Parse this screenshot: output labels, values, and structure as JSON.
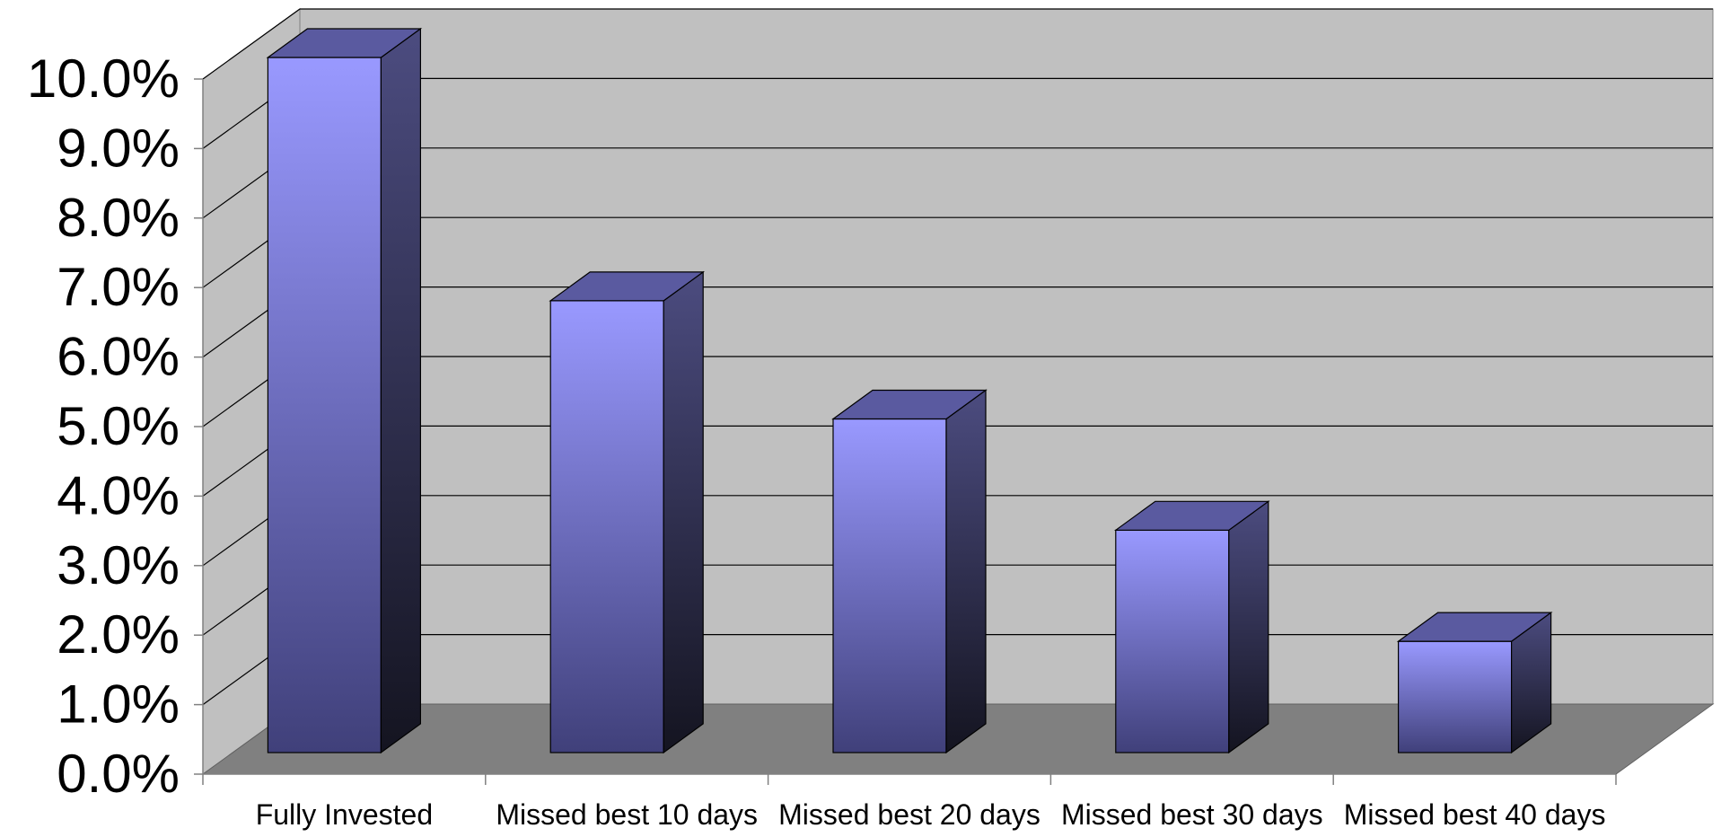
{
  "chart_data": {
    "type": "bar",
    "style": "3d-column",
    "categories": [
      "Fully Invested",
      "Missed best 10 days",
      "Missed best 20 days",
      "Missed best 30 days",
      "Missed best 40 days"
    ],
    "series": [
      {
        "values": [
          10.0,
          6.5,
          4.8,
          3.2,
          1.6
        ]
      }
    ],
    "y_tick_labels": [
      "0.0%",
      "1.0%",
      "2.0%",
      "3.0%",
      "4.0%",
      "5.0%",
      "6.0%",
      "7.0%",
      "8.0%",
      "9.0%",
      "10.0%"
    ],
    "ylim": [
      0,
      10
    ],
    "y_unit": "%",
    "title": "",
    "xlabel": "",
    "ylabel": "",
    "grid": true,
    "legend": "none",
    "colors": {
      "bar_front_top": "#9999ff",
      "bar_front_bottom": "#40407a",
      "bar_side_top": "#4c4c80",
      "bar_side_bottom": "#141420",
      "bar_top_face": "#5a5aa0",
      "back_wall": "#c0c0c0",
      "side_wall": "#c0c0c0",
      "floor": "#808080",
      "gridline": "#000000"
    }
  }
}
